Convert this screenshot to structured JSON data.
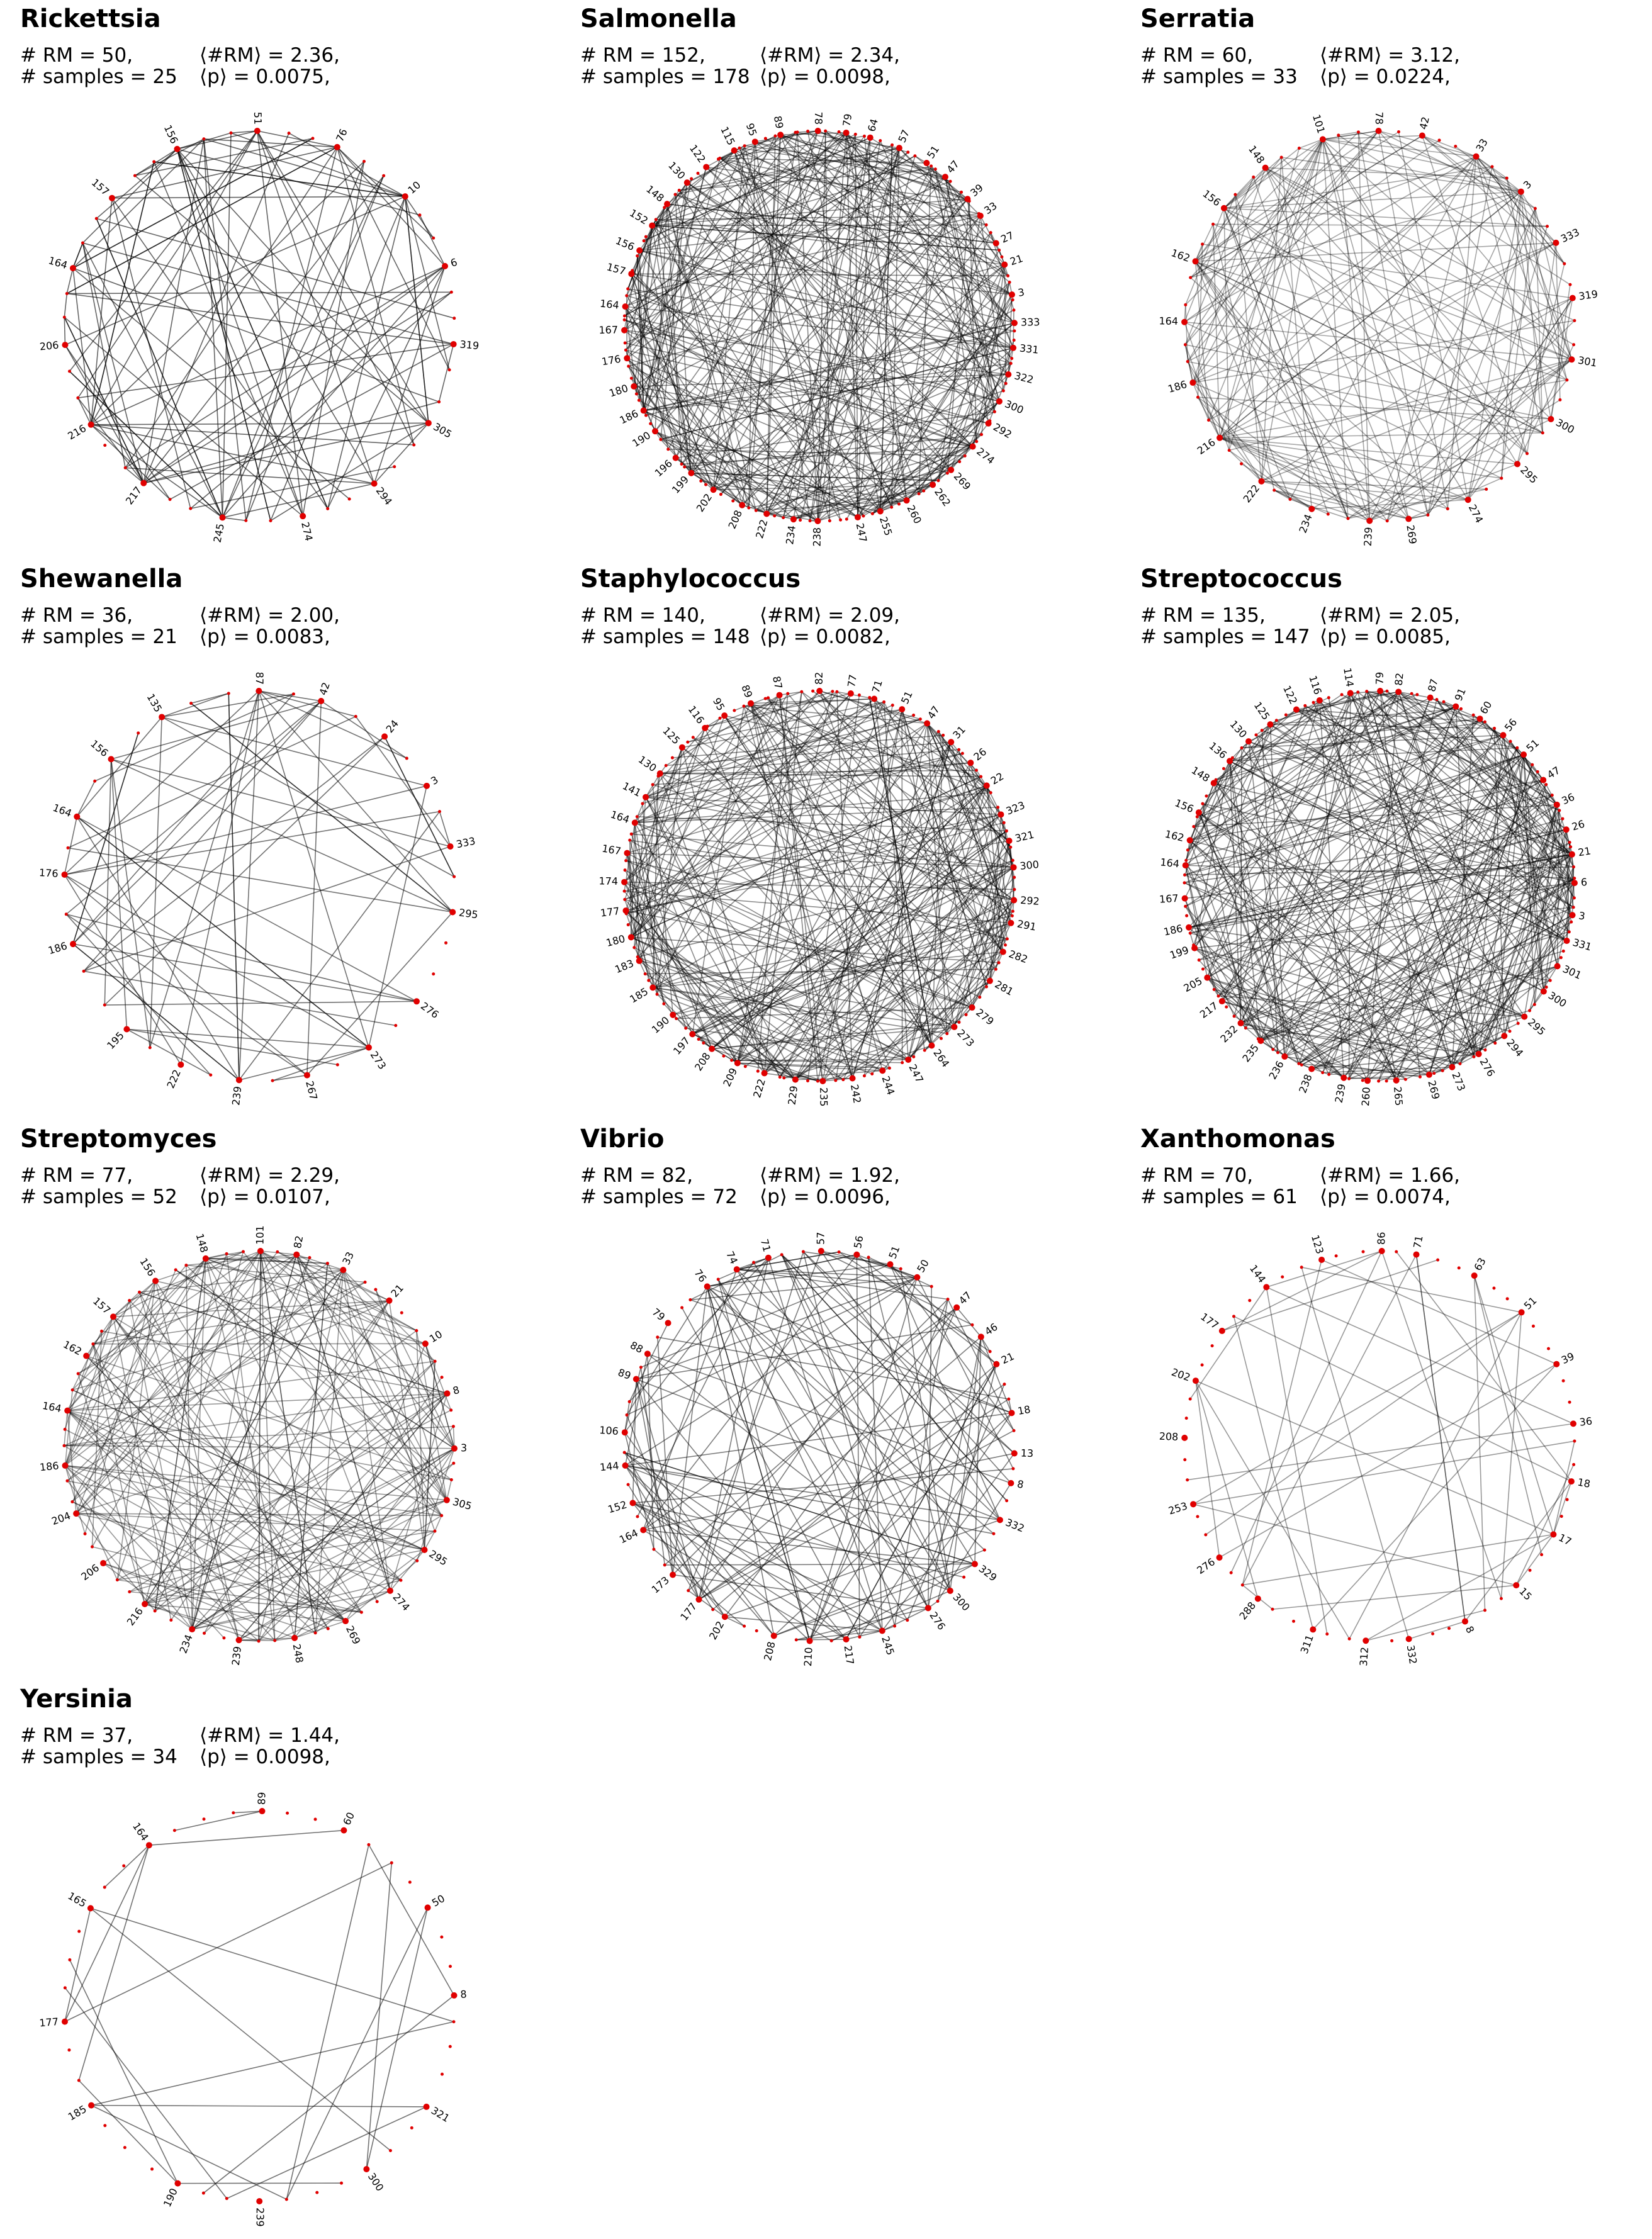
{
  "panels": [
    {
      "id": "rickettsia",
      "title": "Rickettsia",
      "rm": "# RM = 50,",
      "samples": "# samples = 25",
      "mean_rm": "⟨#RM⟩ = 2.36,",
      "mean_p": "⟨p⟩ = 0.0075,",
      "labels": [
        "51",
        "76",
        "10",
        "6",
        "319",
        "305",
        "294",
        "274",
        "245",
        "217",
        "216",
        "206",
        "164",
        "157",
        "156"
      ],
      "n_extra_nodes": 30,
      "n_edges": 120,
      "edge_opacity": 0.6
    },
    {
      "id": "salmonella",
      "title": "Salmonella",
      "rm": "# RM = 152,",
      "samples": "# samples = 178",
      "mean_rm": "⟨#RM⟩ = 2.34,",
      "mean_p": "⟨p⟩ = 0.0098,",
      "labels": [
        "78",
        "79",
        "64",
        "57",
        "51",
        "47",
        "39",
        "33",
        "27",
        "21",
        "3",
        "333",
        "331",
        "322",
        "300",
        "292",
        "274",
        "269",
        "262",
        "260",
        "255",
        "247",
        "238",
        "234",
        "222",
        "208",
        "202",
        "199",
        "196",
        "190",
        "186",
        "180",
        "176",
        "167",
        "164",
        "157",
        "156",
        "152",
        "148",
        "130",
        "122",
        "115",
        "95",
        "89"
      ],
      "n_extra_nodes": 90,
      "n_edges": 380,
      "edge_opacity": 0.45
    },
    {
      "id": "serratia",
      "title": "Serratia",
      "rm": "# RM = 60,",
      "samples": "# samples = 33",
      "mean_rm": "⟨#RM⟩ = 3.12,",
      "mean_p": "⟨p⟩ = 0.0224,",
      "labels": [
        "78",
        "42",
        "33",
        "3",
        "333",
        "319",
        "301",
        "300",
        "295",
        "274",
        "269",
        "239",
        "234",
        "222",
        "216",
        "186",
        "164",
        "162",
        "156",
        "148",
        "101"
      ],
      "n_extra_nodes": 40,
      "n_edges": 210,
      "edge_opacity": 0.35
    },
    {
      "id": "shewanella",
      "title": "Shewanella",
      "rm": "# RM = 36,",
      "samples": "# samples = 21",
      "mean_rm": "⟨#RM⟩ = 2.00,",
      "mean_p": "⟨p⟩ = 0.0083,",
      "labels": [
        "87",
        "42",
        "24",
        "3",
        "333",
        "295",
        "276",
        "273",
        "267",
        "239",
        "222",
        "195",
        "186",
        "176",
        "164",
        "156",
        "135"
      ],
      "n_extra_nodes": 20,
      "n_edges": 72,
      "edge_opacity": 0.55
    },
    {
      "id": "staphylococcus",
      "title": "Staphylococcus",
      "rm": "# RM = 140,",
      "samples": "# samples = 148",
      "mean_rm": "⟨#RM⟩ = 2.09,",
      "mean_p": "⟨p⟩ = 0.0082,",
      "labels": [
        "82",
        "77",
        "71",
        "51",
        "47",
        "31",
        "26",
        "22",
        "323",
        "321",
        "300",
        "292",
        "291",
        "282",
        "281",
        "279",
        "273",
        "264",
        "247",
        "244",
        "242",
        "235",
        "229",
        "222",
        "209",
        "208",
        "197",
        "190",
        "185",
        "183",
        "180",
        "177",
        "174",
        "167",
        "164",
        "141",
        "130",
        "125",
        "116",
        "95",
        "89",
        "87"
      ],
      "n_extra_nodes": 85,
      "n_edges": 340,
      "edge_opacity": 0.45
    },
    {
      "id": "streptococcus",
      "title": "Streptococcus",
      "rm": "# RM = 135,",
      "samples": "# samples = 147",
      "mean_rm": "⟨#RM⟩ = 2.05,",
      "mean_p": "⟨p⟩ = 0.0085,",
      "labels": [
        "79",
        "82",
        "87",
        "91",
        "60",
        "56",
        "51",
        "47",
        "36",
        "26",
        "21",
        "6",
        "3",
        "331",
        "301",
        "300",
        "295",
        "294",
        "276",
        "273",
        "269",
        "265",
        "260",
        "239",
        "238",
        "236",
        "235",
        "232",
        "217",
        "205",
        "199",
        "186",
        "167",
        "164",
        "162",
        "156",
        "148",
        "136",
        "130",
        "125",
        "122",
        "116",
        "114"
      ],
      "n_extra_nodes": 85,
      "n_edges": 360,
      "edge_opacity": 0.45
    },
    {
      "id": "streptomyces",
      "title": "Streptomyces",
      "rm": "# RM = 77,",
      "samples": "# samples = 52",
      "mean_rm": "⟨#RM⟩ = 2.29,",
      "mean_p": "⟨p⟩ = 0.0107,",
      "labels": [
        "101",
        "82",
        "33",
        "21",
        "10",
        "8",
        "3",
        "305",
        "295",
        "274",
        "269",
        "248",
        "239",
        "234",
        "216",
        "206",
        "204",
        "186",
        "164",
        "162",
        "157",
        "156",
        "148"
      ],
      "n_extra_nodes": 45,
      "n_edges": 230,
      "edge_opacity": 0.4
    },
    {
      "id": "vibrio",
      "title": "Vibrio",
      "rm": "# RM = 82,",
      "samples": "# samples = 72",
      "mean_rm": "⟨#RM⟩ = 1.92,",
      "mean_p": "⟨p⟩ = 0.0096,",
      "labels": [
        "57",
        "56",
        "51",
        "50",
        "47",
        "46",
        "21",
        "18",
        "13",
        "8",
        "332",
        "329",
        "300",
        "276",
        "245",
        "217",
        "210",
        "208",
        "202",
        "177",
        "173",
        "164",
        "152",
        "144",
        "106",
        "89",
        "88",
        "79",
        "76",
        "74",
        "71"
      ],
      "n_extra_nodes": 40,
      "n_edges": 160,
      "edge_opacity": 0.5
    },
    {
      "id": "xanthomonas",
      "title": "Xanthomonas",
      "rm": "# RM = 70,",
      "samples": "# samples = 61",
      "mean_rm": "⟨#RM⟩ = 1.66,",
      "mean_p": "⟨p⟩ = 0.0074,",
      "labels": [
        "86",
        "71",
        "63",
        "51",
        "39",
        "36",
        "18",
        "17",
        "15",
        "8",
        "332",
        "312",
        "311",
        "288",
        "276",
        "253",
        "208",
        "202",
        "177",
        "144",
        "123"
      ],
      "n_extra_nodes": 40,
      "n_edges": 45,
      "edge_opacity": 0.4
    },
    {
      "id": "yersinia",
      "title": "Yersinia",
      "rm": "# RM = 37,",
      "samples": "# samples = 34",
      "mean_rm": "⟨#RM⟩ = 1.44,",
      "mean_p": "⟨p⟩ = 0.0098,",
      "labels": [
        "89",
        "60",
        "50",
        "8",
        "321",
        "300",
        "239",
        "190",
        "185",
        "177",
        "165",
        "164"
      ],
      "n_extra_nodes": 30,
      "n_edges": 24,
      "edge_opacity": 0.55
    }
  ]
}
